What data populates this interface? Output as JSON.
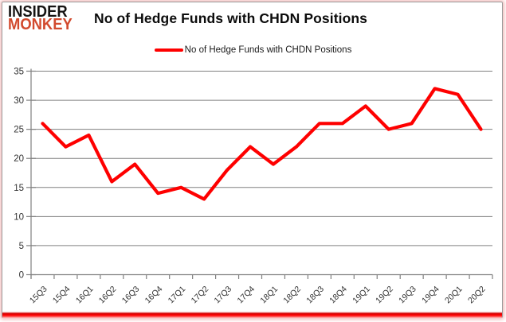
{
  "logo": {
    "line1": "INSIDER",
    "line2": "MONKEY"
  },
  "header": {
    "title": "No of Hedge Funds with CHDN Positions"
  },
  "legend": {
    "label": "No of Hedge Funds with CHDN Positions"
  },
  "colors": {
    "series_line": "#fe0000",
    "logo_accent": "#d24a2e",
    "grid": "#808080",
    "axis_text": "#333333",
    "bottom_bar": "#ff0000"
  },
  "chart_data": {
    "type": "line",
    "title": "No of Hedge Funds with CHDN Positions",
    "categories": [
      "15Q3",
      "15Q4",
      "16Q1",
      "16Q2",
      "16Q3",
      "16Q4",
      "17Q1",
      "17Q2",
      "17Q3",
      "17Q4",
      "18Q1",
      "18Q2",
      "18Q3",
      "18Q4",
      "19Q1",
      "19Q2",
      "19Q3",
      "19Q4",
      "20Q1",
      "20Q2"
    ],
    "series": [
      {
        "name": "No of Hedge Funds with CHDN Positions",
        "color": "#fe0000",
        "values": [
          26,
          22,
          24,
          16,
          19,
          14,
          15,
          13,
          18,
          22,
          19,
          22,
          26,
          26,
          29,
          25,
          26,
          32,
          31,
          25
        ]
      }
    ],
    "xlabel": "",
    "ylabel": "",
    "ylim": [
      0,
      35
    ],
    "yticks": [
      0,
      5,
      10,
      15,
      20,
      25,
      30,
      35
    ],
    "grid": "horizontal",
    "legend_position": "top"
  }
}
